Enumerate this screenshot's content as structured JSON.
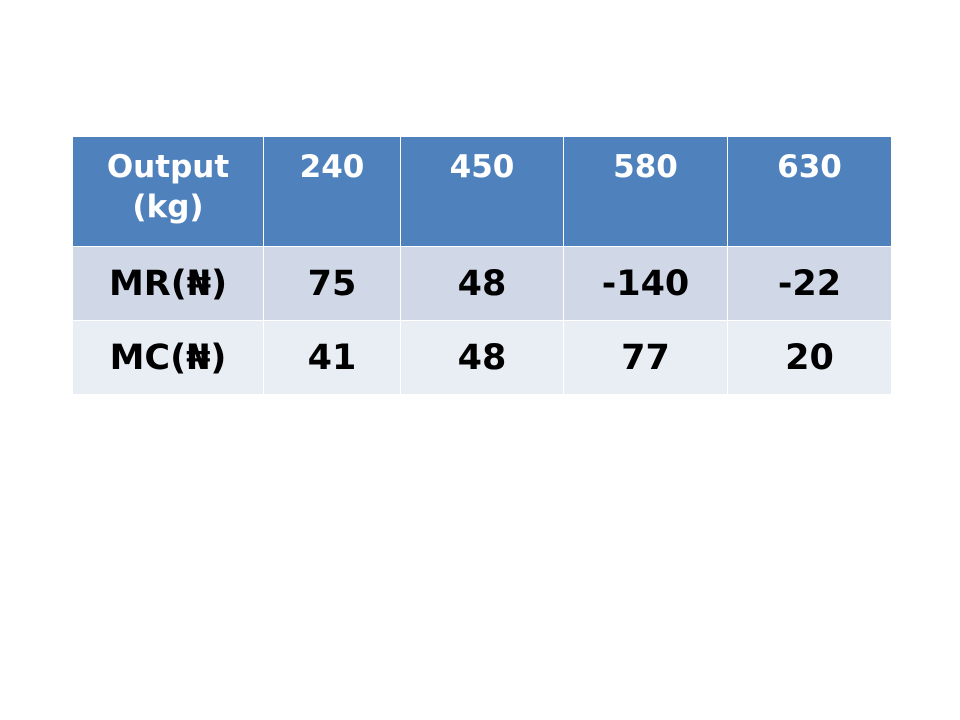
{
  "table": {
    "header": {
      "label_line1": "Output",
      "label_line2": "(kg)",
      "outputs": [
        "240",
        "450",
        "580",
        "630"
      ]
    },
    "rows": [
      {
        "label": "MR(₦)",
        "values": [
          "75",
          "48",
          "-140",
          "-22"
        ]
      },
      {
        "label": "MC(₦)",
        "values": [
          "41",
          "48",
          "77",
          "20"
        ]
      }
    ]
  },
  "colors": {
    "header_bg": "#4f81bd",
    "header_text": "#ffffff",
    "row1_bg": "#d0d8e8",
    "row2_bg": "#e9edf4"
  }
}
